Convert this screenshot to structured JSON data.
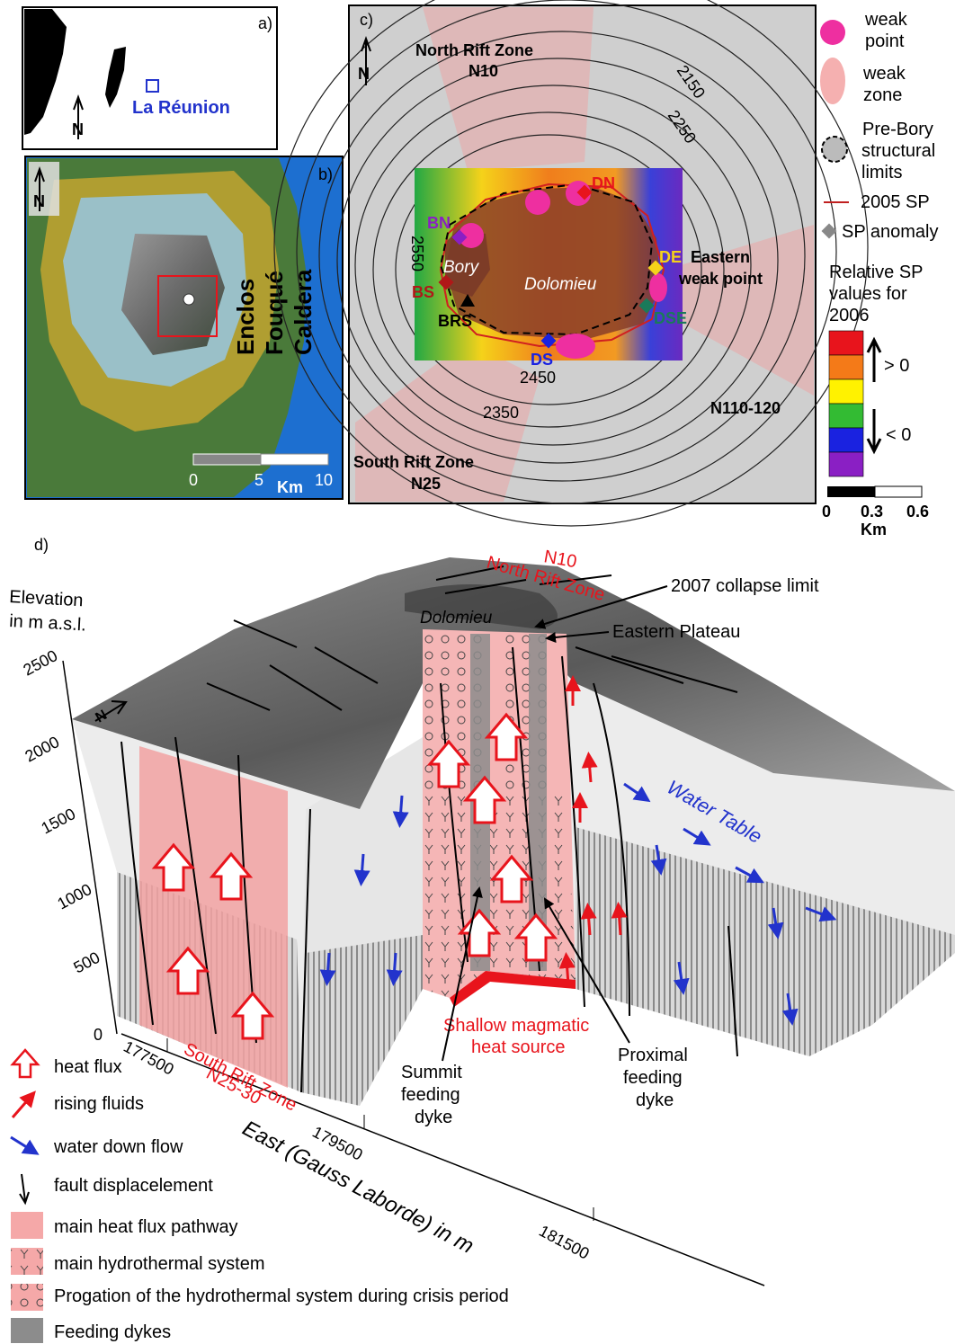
{
  "panel_a": {
    "label": "a)",
    "place": "La Réunion"
  },
  "panel_b": {
    "label": "b)",
    "caldera_words": [
      "Enclos",
      "Fouqué",
      "Caldera"
    ],
    "scale": [
      "0",
      "5",
      "10"
    ],
    "scale_unit": "Km"
  },
  "panel_c": {
    "label": "c)",
    "north_rift": [
      "North Rift Zone",
      "N10"
    ],
    "south_rift": [
      "South Rift Zone",
      "N25"
    ],
    "eastern_wp": [
      "Eastern",
      "weak point"
    ],
    "trend": "N110-120",
    "craters": {
      "bory": "Bory",
      "dolomieu": "Dolomieu"
    },
    "contours": [
      "2150",
      "2250",
      "2450",
      "2350",
      "2550"
    ],
    "anomalies": {
      "dn": "DN",
      "bn": "BN",
      "bs": "BS",
      "brs": "BRS",
      "de": "DE",
      "dse": "DSE",
      "ds": "DS"
    }
  },
  "legend_c": {
    "weak_point": [
      "weak",
      "point"
    ],
    "weak_zone": [
      "weak",
      "zone"
    ],
    "prebory": [
      "Pre-Bory",
      "structural",
      "limits"
    ],
    "sp2005": "2005 SP",
    "sp_anomaly": "SP anomaly",
    "relative": [
      "Relative SP",
      "values for",
      "2006"
    ],
    "pos": "> 0",
    "neg": "< 0",
    "scale": [
      "0",
      "0.3",
      "0.6"
    ],
    "scale_unit": "Km",
    "colors": [
      "#e8141c",
      "#f47a18",
      "#fff200",
      "#33bb33",
      "#1a22e0",
      "#8a1fc4"
    ]
  },
  "panel_d": {
    "label": "d)",
    "elevation": [
      "Elevation",
      "in m a.s.l."
    ],
    "elev_ticks": [
      "2500",
      "2000",
      "1500",
      "1000",
      "500",
      "0"
    ],
    "east_ticks": [
      "177500",
      "179500",
      "181500"
    ],
    "east_axis": "East (Gauss Laborde) in m",
    "north_rift": [
      "N10",
      "North Rift Zone"
    ],
    "south_rift": [
      "South Rift Zone",
      "N25-30"
    ],
    "collapse": "2007 collapse limit",
    "plateau": "Eastern Plateau",
    "dolomieu": "Dolomieu",
    "water_table": "Water Table",
    "shallow": [
      "Shallow magmatic",
      "heat source"
    ],
    "summit_dyke": [
      "Summit",
      "feeding",
      "dyke"
    ],
    "proximal_dyke": [
      "Proximal",
      "feeding",
      "dyke"
    ]
  },
  "legend_d": {
    "heat_flux": "heat flux",
    "rising": "rising fluids",
    "water": "water down flow",
    "fault": "fault displacelement",
    "pathway": "main heat flux pathway",
    "hydro": "main hydrothermal system",
    "propagation": "Progation of the hydrothermal system during crisis period",
    "dykes": "Feeding dykes"
  }
}
